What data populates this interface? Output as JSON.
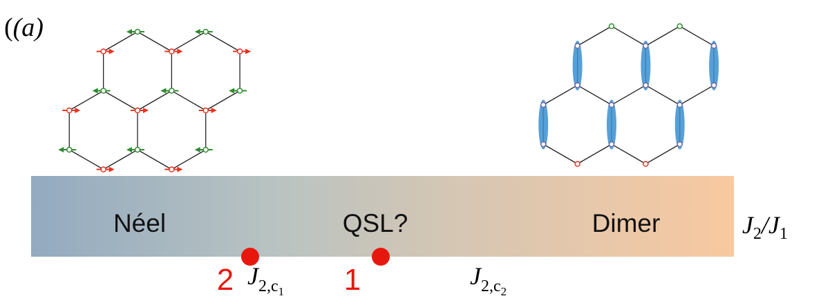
{
  "panel_label": "(a)",
  "phases": [
    "Néel",
    "QSL?",
    "Dimer"
  ],
  "axis_label": {
    "numerator": "J",
    "numerator_sub": "2",
    "separator": "/J",
    "denominator_sub": "1"
  },
  "points": [
    {
      "label": "2"
    },
    {
      "label": "1"
    }
  ],
  "critical_points": [
    {
      "symbol": "J",
      "subscript": "2,c",
      "sub_subscript": "1"
    },
    {
      "symbol": "J",
      "subscript": "2,c",
      "sub_subscript": "2"
    }
  ]
}
